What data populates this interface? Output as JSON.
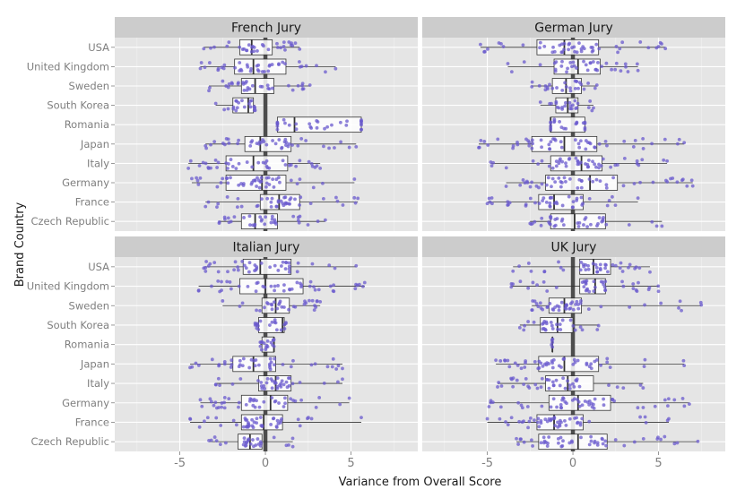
{
  "chart_data": {
    "type": "boxplot-jitter",
    "xlabel": "Variance from Overall Score",
    "ylabel": "Brand Country",
    "xlim": [
      -8.8,
      8.9
    ],
    "x_ticks": [
      -5,
      0,
      5
    ],
    "x_tick_labels": [
      "-5",
      "0",
      "5"
    ],
    "categories": [
      "Czech Republic",
      "France",
      "Germany",
      "Italy",
      "Japan",
      "Romania",
      "South Korea",
      "Sweden",
      "United Kingdom",
      "USA"
    ],
    "grid": true,
    "reference_line_x": 0,
    "colors": {
      "panel_bg": "#e5e5e5",
      "strip_bg": "#cccccc",
      "grid_major": "#ffffff",
      "grid_minor": "#f2f2f2",
      "points": "#6a5acd",
      "box_fill": "#ffffff",
      "box_line": "#333333",
      "zero_line": "#4d4d4d"
    },
    "panels": [
      {
        "title": "French Jury",
        "boxes": [
          {
            "category": "USA",
            "lw": -3.6,
            "q1": -1.5,
            "med": -0.8,
            "q3": 0.4,
            "uw": 2.0
          },
          {
            "category": "United Kingdom",
            "lw": -3.8,
            "q1": -1.8,
            "med": -0.7,
            "q3": 1.2,
            "uw": 4.1
          },
          {
            "category": "Sweden",
            "lw": -3.3,
            "q1": -1.4,
            "med": -0.6,
            "q3": 0.5,
            "uw": 2.6
          },
          {
            "category": "South Korea",
            "lw": -2.9,
            "q1": -1.9,
            "med": -1.0,
            "q3": -0.7,
            "uw": -0.6
          },
          {
            "category": "Romania",
            "lw": 0.7,
            "q1": 0.7,
            "med": 1.7,
            "q3": 5.6,
            "uw": 5.6
          },
          {
            "category": "Japan",
            "lw": -3.5,
            "q1": -1.2,
            "med": -0.3,
            "q3": 1.5,
            "uw": 5.3
          },
          {
            "category": "Italy",
            "lw": -4.5,
            "q1": -2.3,
            "med": -0.7,
            "q3": 1.3,
            "uw": 3.2
          },
          {
            "category": "Germany",
            "lw": -4.3,
            "q1": -2.3,
            "med": -0.2,
            "q3": 1.2,
            "uw": 5.2
          },
          {
            "category": "France",
            "lw": -3.5,
            "q1": -0.3,
            "med": 0.8,
            "q3": 2.0,
            "uw": 5.4
          },
          {
            "category": "Czech Republic",
            "lw": -2.7,
            "q1": -1.4,
            "med": -0.6,
            "q3": 0.7,
            "uw": 3.5
          }
        ]
      },
      {
        "title": "German Jury",
        "boxes": [
          {
            "category": "USA",
            "lw": -5.4,
            "q1": -2.1,
            "med": -0.5,
            "q3": 1.5,
            "uw": 5.4
          },
          {
            "category": "United Kingdom",
            "lw": -3.8,
            "q1": -1.1,
            "med": 0.3,
            "q3": 1.6,
            "uw": 3.8
          },
          {
            "category": "Sweden",
            "lw": -2.4,
            "q1": -1.2,
            "med": -0.4,
            "q3": 0.5,
            "uw": 1.4
          },
          {
            "category": "South Korea",
            "lw": -1.9,
            "q1": -1.0,
            "med": -0.3,
            "q3": 0.3,
            "uw": 1.2
          },
          {
            "category": "Romania",
            "lw": -1.3,
            "q1": -1.3,
            "med": -1.3,
            "q3": 0.7,
            "uw": 0.7
          },
          {
            "category": "Japan",
            "lw": -5.5,
            "q1": -2.4,
            "med": -0.5,
            "q3": 1.4,
            "uw": 6.5
          },
          {
            "category": "Italy",
            "lw": -4.8,
            "q1": -1.3,
            "med": 0.5,
            "q3": 1.7,
            "uw": 5.5
          },
          {
            "category": "Germany",
            "lw": -3.9,
            "q1": -1.6,
            "med": 1.0,
            "q3": 2.6,
            "uw": 7.0
          },
          {
            "category": "France",
            "lw": -5.0,
            "q1": -2.0,
            "med": -1.1,
            "q3": 0.6,
            "uw": 3.8
          },
          {
            "category": "Czech Republic",
            "lw": -2.5,
            "q1": -1.3,
            "med": 0.1,
            "q3": 1.9,
            "uw": 5.2
          }
        ]
      },
      {
        "title": "Italian Jury",
        "boxes": [
          {
            "category": "USA",
            "lw": -3.6,
            "q1": -1.3,
            "med": -0.3,
            "q3": 1.5,
            "uw": 5.3
          },
          {
            "category": "United Kingdom",
            "lw": -3.9,
            "q1": -1.5,
            "med": 0.0,
            "q3": 2.2,
            "uw": 5.8
          },
          {
            "category": "Sweden",
            "lw": -2.5,
            "q1": -0.2,
            "med": 0.6,
            "q3": 1.4,
            "uw": 3.2
          },
          {
            "category": "South Korea",
            "lw": -0.6,
            "q1": -0.4,
            "med": 1.0,
            "q3": 1.1,
            "uw": 1.2
          },
          {
            "category": "Romania",
            "lw": -0.3,
            "q1": -0.2,
            "med": 0.5,
            "q3": 0.5,
            "uw": 0.5
          },
          {
            "category": "Japan",
            "lw": -4.4,
            "q1": -1.9,
            "med": -0.7,
            "q3": 0.6,
            "uw": 4.5
          },
          {
            "category": "Italy",
            "lw": -2.9,
            "q1": -0.4,
            "med": 0.6,
            "q3": 1.5,
            "uw": 4.5
          },
          {
            "category": "Germany",
            "lw": -3.8,
            "q1": -1.4,
            "med": 0.3,
            "q3": 1.3,
            "uw": 4.9
          },
          {
            "category": "France",
            "lw": -4.4,
            "q1": -1.4,
            "med": -0.1,
            "q3": 1.0,
            "uw": 5.6
          },
          {
            "category": "Czech Republic",
            "lw": -3.3,
            "q1": -1.6,
            "med": -0.9,
            "q3": -0.2,
            "uw": 1.6
          }
        ]
      },
      {
        "title": "UK Jury",
        "boxes": [
          {
            "category": "USA",
            "lw": -3.5,
            "q1": 0.4,
            "med": 1.2,
            "q3": 2.2,
            "uw": 4.5
          },
          {
            "category": "United Kingdom",
            "lw": -3.6,
            "q1": 0.4,
            "med": 1.3,
            "q3": 1.9,
            "uw": 5.0
          },
          {
            "category": "Sweden",
            "lw": -2.4,
            "q1": -1.4,
            "med": -0.5,
            "q3": 0.5,
            "uw": 7.5
          },
          {
            "category": "South Korea",
            "lw": -3.1,
            "q1": -1.9,
            "med": -0.9,
            "q3": 0.0,
            "uw": 1.5
          },
          {
            "category": "Romania",
            "lw": -1.2,
            "q1": -1.2,
            "med": -1.2,
            "q3": -1.2,
            "uw": -1.2
          },
          {
            "category": "Japan",
            "lw": -4.5,
            "q1": -2.0,
            "med": -0.5,
            "q3": 1.5,
            "uw": 6.5
          },
          {
            "category": "Italy",
            "lw": -4.4,
            "q1": -1.6,
            "med": -0.3,
            "q3": 1.2,
            "uw": 4.1
          },
          {
            "category": "Germany",
            "lw": -4.9,
            "q1": -1.4,
            "med": 0.3,
            "q3": 2.2,
            "uw": 6.8
          },
          {
            "category": "France",
            "lw": -5.0,
            "q1": -2.1,
            "med": -1.1,
            "q3": 0.6,
            "uw": 5.6
          },
          {
            "category": "Czech Republic",
            "lw": -3.3,
            "q1": -2.0,
            "med": 0.3,
            "q3": 2.0,
            "uw": 7.3
          }
        ]
      }
    ]
  }
}
